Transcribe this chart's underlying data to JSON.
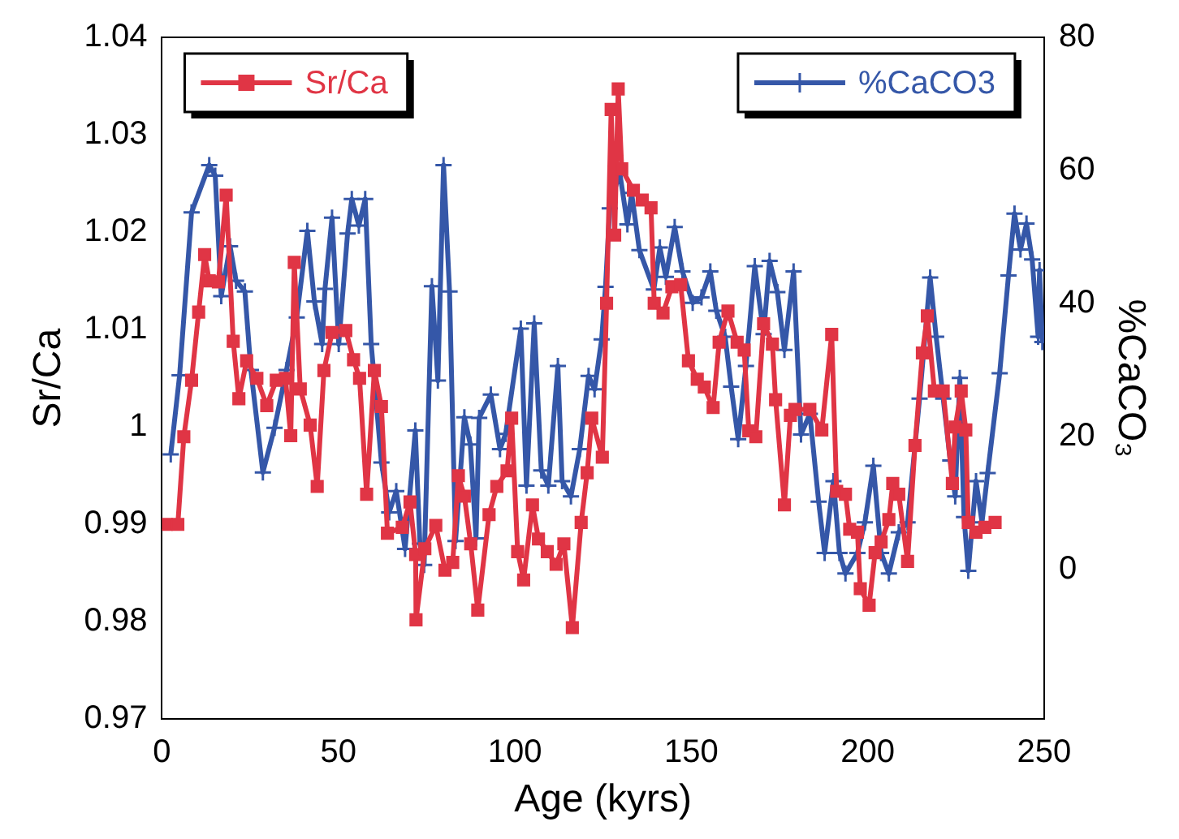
{
  "chart_data": {
    "type": "line",
    "xlabel": "Age (kyrs)",
    "ylabel": "Sr/Ca",
    "y2label": "%CaCO₃",
    "xlim": [
      0,
      250
    ],
    "xticks": [
      0,
      50,
      100,
      150,
      200,
      250
    ],
    "ylim": [
      0.97,
      1.04
    ],
    "yticks": [
      0.97,
      0.98,
      0.99,
      1,
      1.01,
      1.02,
      1.03,
      1.04
    ],
    "y2lim": [
      -22.5,
      80
    ],
    "y2ticks": [
      0,
      20,
      40,
      60,
      80
    ],
    "legend": "top",
    "line_style": "solid",
    "series": [
      {
        "name": "Sr/Ca",
        "color": "#e03545",
        "marker": "square",
        "x": [
          1.2,
          4.5,
          6.2,
          8.4,
          10.4,
          12.1,
          13.4,
          16.0,
          18.2,
          20.2,
          21.8,
          24.0,
          26.9,
          29.7,
          32.4,
          35.0,
          36.5,
          37.5,
          39.2,
          42.0,
          44.0,
          45.9,
          48.2,
          52.1,
          54.3,
          56.0,
          58.0,
          60.2,
          62.2,
          63.9,
          68.1,
          70.3,
          71.9,
          72.0,
          74.5,
          77.6,
          80.2,
          82.4,
          84.0,
          85.7,
          87.5,
          89.5,
          92.7,
          94.9,
          97.8,
          99.1,
          100.8,
          102.5,
          105.0,
          106.7,
          109.2,
          111.7,
          113.9,
          116.3,
          118.8,
          120.5,
          121.8,
          124.8,
          126.0,
          127.3,
          128.3,
          129.3,
          130.3,
          133.6,
          136.1,
          138.6,
          139.5,
          142.0,
          144.5,
          147.0,
          149.2,
          151.7,
          153.7,
          156.2,
          157.9,
          160.4,
          163.0,
          165.0,
          166.3,
          168.3,
          170.5,
          173.0,
          173.9,
          176.4,
          178.1,
          179.4,
          183.6,
          187.0,
          189.8,
          191.2,
          193.7,
          194.9,
          197.1,
          197.9,
          200.4,
          202.1,
          203.8,
          206.0,
          207.1,
          208.8,
          211.3,
          213.4,
          215.5,
          216.9,
          218.9,
          221.4,
          224.0,
          224.8,
          226.5,
          227.8,
          228.5,
          230.7,
          233.2,
          236.1
        ],
        "values": [
          0.99,
          0.99,
          0.999,
          1.0048,
          1.0118,
          1.0177,
          1.015,
          1.0149,
          1.0238,
          1.0088,
          1.0029,
          1.0068,
          1.005,
          1.0022,
          1.0048,
          1.005,
          0.9991,
          1.0169,
          1.0039,
          1.0002,
          0.9939,
          1.0058,
          1.0097,
          1.0099,
          1.0069,
          1.005,
          0.9931,
          1.0058,
          1.0021,
          0.9891,
          0.9897,
          0.9923,
          0.9869,
          0.9802,
          0.9875,
          0.9899,
          0.9853,
          0.9861,
          0.995,
          0.9929,
          0.988,
          0.9812,
          0.991,
          0.9939,
          0.9955,
          1.0009,
          0.9872,
          0.9843,
          0.992,
          0.9885,
          0.9872,
          0.9859,
          0.988,
          0.9794,
          0.9902,
          0.9953,
          1.0009,
          0.9969,
          1.0127,
          1.0326,
          1.0197,
          1.0347,
          1.0265,
          1.0243,
          1.0233,
          1.0225,
          1.0127,
          1.0117,
          1.0144,
          1.0146,
          1.0068,
          1.0049,
          1.0041,
          1.002,
          1.0087,
          1.0119,
          1.0087,
          1.0079,
          0.9996,
          0.999,
          1.0106,
          1.0085,
          1.0028,
          0.992,
          1.0012,
          1.0018,
          1.0018,
          0.9997,
          1.0095,
          0.9934,
          0.9931,
          0.9895,
          0.9892,
          0.9834,
          0.9817,
          0.9871,
          0.9882,
          0.9905,
          0.9942,
          0.9931,
          0.9862,
          0.9981,
          1.0076,
          1.0114,
          1.0037,
          1.0037,
          0.9942,
          1.0,
          1.0037,
          0.9997,
          0.9902,
          0.9892,
          0.9897,
          0.9902
        ]
      },
      {
        "name": "%CaCO3",
        "color": "#3557a8",
        "marker": "cross",
        "axis": "y2",
        "x": [
          2.5,
          5.0,
          8.4,
          13.4,
          15.1,
          16.8,
          19.3,
          21.0,
          23.5,
          25.2,
          28.6,
          31.9,
          35.3,
          38.2,
          41.2,
          43.2,
          45.4,
          46.2,
          48.2,
          50.1,
          52.6,
          53.8,
          55.8,
          57.6,
          59.3,
          62.2,
          64.4,
          66.4,
          68.9,
          71.8,
          73.1,
          74.3,
          76.5,
          78.2,
          79.8,
          81.5,
          83.2,
          85.7,
          87.4,
          89.0,
          89.9,
          93.2,
          95.8,
          97.4,
          101.7,
          103.3,
          105.5,
          107.5,
          109.5,
          112.2,
          113.4,
          115.9,
          118.4,
          120.9,
          122.6,
          124.6,
          125.7,
          126.9,
          129.7,
          131.9,
          133.1,
          135.3,
          139.4,
          141.1,
          142.8,
          145.3,
          147.5,
          150.4,
          152.9,
          155.4,
          157.1,
          159.6,
          161.3,
          163.3,
          165.5,
          168.0,
          170.5,
          172.2,
          174.4,
          176.4,
          179.0,
          181.1,
          183.6,
          186.1,
          187.8,
          190.3,
          192.0,
          193.7,
          197.1,
          199.2,
          201.6,
          203.8,
          206.0,
          208.8,
          211.3,
          214.7,
          217.7,
          219.4,
          221.4,
          223.4,
          224.8,
          226.1,
          227.3,
          228.5,
          230.7,
          232.4,
          234.0,
          237.4,
          239.9,
          241.6,
          243.3,
          245.0,
          246.6,
          248.3,
          248.7,
          249.5
        ],
        "values": [
          17.3,
          29.2,
          53.7,
          60.8,
          59.2,
          41.1,
          48.6,
          43.4,
          41.8,
          30.0,
          14.6,
          21.3,
          30.0,
          37.9,
          50.9,
          40.3,
          33.9,
          42.2,
          52.9,
          33.9,
          50.5,
          55.7,
          51.7,
          55.7,
          33.9,
          16.1,
          8.6,
          11.8,
          3.1,
          20.9,
          3.9,
          0.7,
          42.6,
          28.4,
          60.8,
          41.8,
          4.3,
          22.9,
          18.8,
          4.7,
          22.8,
          26.3,
          18.1,
          20.4,
          36.2,
          12.6,
          37.0,
          14.9,
          12.6,
          30.6,
          13.3,
          11.0,
          18.1,
          29.1,
          27.1,
          34.6,
          42.5,
          54.3,
          59.8,
          51.9,
          56.6,
          48.0,
          42.1,
          48.4,
          44.0,
          51.5,
          44.8,
          40.1,
          40.9,
          44.8,
          38.9,
          35.0,
          27.5,
          19.6,
          30.6,
          45.6,
          35.4,
          46.4,
          41.7,
          33.0,
          44.8,
          20.3,
          23.4,
          10.2,
          2.5,
          13.3,
          2.5,
          -0.6,
          2.5,
          7.1,
          15.6,
          2.5,
          -0.6,
          5.6,
          7.1,
          25.7,
          43.9,
          35.0,
          25.7,
          16.4,
          11.0,
          28.8,
          7.9,
          -0.2,
          13.3,
          7.1,
          14.5,
          29.5,
          44.2,
          53.5,
          48.1,
          52.0,
          46.6,
          35.0,
          45.0,
          34.2
        ]
      }
    ]
  }
}
